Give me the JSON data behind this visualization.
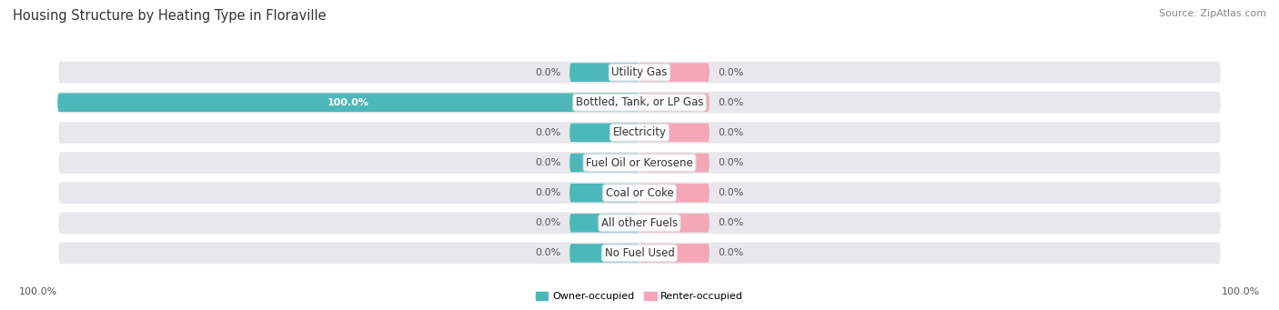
{
  "title": "Housing Structure by Heating Type in Floraville",
  "source": "Source: ZipAtlas.com",
  "categories": [
    "Utility Gas",
    "Bottled, Tank, or LP Gas",
    "Electricity",
    "Fuel Oil or Kerosene",
    "Coal or Coke",
    "All other Fuels",
    "No Fuel Used"
  ],
  "owner_values": [
    0.0,
    100.0,
    0.0,
    0.0,
    0.0,
    0.0,
    0.0
  ],
  "renter_values": [
    0.0,
    0.0,
    0.0,
    0.0,
    0.0,
    0.0,
    0.0
  ],
  "owner_color": "#4db8ba",
  "renter_color": "#f4a7b9",
  "row_bg_color": "#e8e8ec",
  "owner_label": "Owner-occupied",
  "renter_label": "Renter-occupied",
  "axis_label_left": "100.0%",
  "axis_label_right": "100.0%",
  "title_fontsize": 10.5,
  "source_fontsize": 8,
  "label_fontsize": 8,
  "bar_label_fontsize": 8,
  "category_fontsize": 8.5,
  "stub_size": 12,
  "max_val": 100
}
